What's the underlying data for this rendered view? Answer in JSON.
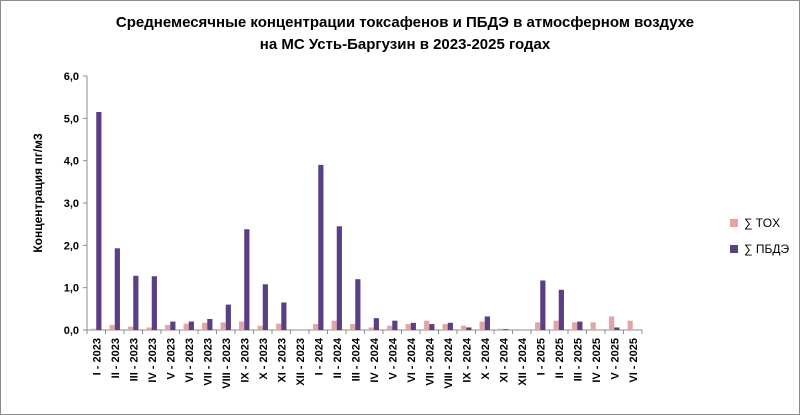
{
  "chart_data": {
    "type": "bar",
    "title_line1": "Среднемесячные концентрации токсафенов и ПБДЭ в атмосферном воздухе",
    "title_line2": "на МС Усть-Баргузин в 2023-2025 годах",
    "ylabel": "Концентрация пг/м3",
    "ylim": [
      0,
      6
    ],
    "yticks": [
      "0,0",
      "1,0",
      "2,0",
      "3,0",
      "4,0",
      "5,0",
      "6,0"
    ],
    "legend_position": "right",
    "grid": false,
    "categories": [
      "I - 2023",
      "II - 2023",
      "III - 2023",
      "IV - 2023",
      "V - 2023",
      "VI - 2023",
      "VII - 2023",
      "VIII - 2023",
      "IX - 2023",
      "X - 2023",
      "XI - 2023",
      "XII - 2023",
      "I - 2024",
      "II - 2024",
      "III - 2024",
      "IV - 2024",
      "V - 2024",
      "VI - 2024",
      "VII - 2024",
      "VIII - 2024",
      "IX - 2024",
      "X - 2024",
      "XI - 2024",
      "XII - 2024",
      "I - 2025",
      "II - 2025",
      "III - 2025",
      "IV - 2025",
      "V - 2025",
      "VI - 2025"
    ],
    "series": [
      {
        "name": "∑ TOX",
        "color": "#e6a3a3",
        "values": [
          0.03,
          0.12,
          0.08,
          0.06,
          0.12,
          0.15,
          0.17,
          0.18,
          0.2,
          0.1,
          0.15,
          0,
          0.14,
          0.22,
          0.14,
          0.06,
          0.1,
          0.14,
          0.22,
          0.14,
          0.1,
          0.2,
          0.03,
          0,
          0.18,
          0.22,
          0.18,
          0.18,
          0.32,
          0.22
        ]
      },
      {
        "name": "∑ ПБДЭ",
        "color": "#5b3f85",
        "values": [
          5.15,
          1.93,
          1.28,
          1.27,
          0.2,
          0.2,
          0.26,
          0.6,
          2.38,
          1.08,
          0.65,
          0,
          3.9,
          2.45,
          1.2,
          0.28,
          0.22,
          0.17,
          0.14,
          0.17,
          0.06,
          0.32,
          0.02,
          0,
          1.17,
          0.95,
          0.2,
          0,
          0.06,
          0
        ]
      }
    ]
  }
}
